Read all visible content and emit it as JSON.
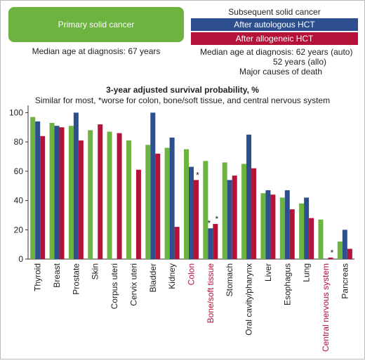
{
  "header": {
    "primary": "Primary solid cancer",
    "primary_age": "Median age at diagnosis: 67 years",
    "subsequent": "Subsequent solid cancer",
    "auto": "After autologous HCT",
    "allo": "After allogeneic HCT",
    "age_auto": "Median age at diagnosis: 62 years (auto)",
    "age_allo": "52 years (allo)",
    "causes": "Major causes of death"
  },
  "chart_data": {
    "type": "bar",
    "title": "3-year adjusted survival probability, %",
    "subtitle": "Similar for most, *worse for colon, bone/soft tissue, and central nervous system",
    "categories": [
      "Thyroid",
      "Breast",
      "Prostate",
      "Skin",
      "Corpus uteri",
      "Cervix uteri",
      "Bladder",
      "Kidney",
      "Colon",
      "Bone/soft tissue",
      "Stomach",
      "Oral cavity/pharynx",
      "Liver",
      "Esophagus",
      "Lung",
      "Central nervous system",
      "Pancreas"
    ],
    "category_colors": [
      "#222222",
      "#222222",
      "#222222",
      "#222222",
      "#222222",
      "#222222",
      "#222222",
      "#222222",
      "#b5123a",
      "#b5123a",
      "#222222",
      "#222222",
      "#222222",
      "#222222",
      "#222222",
      "#b5123a",
      "#222222"
    ],
    "series": [
      {
        "color": "#6db33f",
        "values": [
          97,
          93,
          91,
          88,
          87,
          81,
          78,
          76,
          75,
          67,
          66,
          65,
          45,
          42,
          38,
          27,
          12
        ]
      },
      {
        "color": "#2d4f8e",
        "values": [
          94,
          91,
          100,
          null,
          null,
          null,
          100,
          83,
          63,
          21,
          54,
          85,
          47,
          47,
          42,
          null,
          20
        ],
        "notes": [
          null,
          null,
          null,
          null,
          null,
          null,
          null,
          null,
          null,
          "*",
          null,
          null,
          null,
          null,
          null,
          null,
          null
        ]
      },
      {
        "color": "#b5123a",
        "values": [
          84,
          90,
          81,
          92,
          86,
          61,
          72,
          22,
          54,
          24,
          57,
          62,
          44,
          34,
          28,
          1,
          7
        ],
        "notes": [
          null,
          null,
          null,
          null,
          null,
          null,
          null,
          null,
          "*",
          "*",
          null,
          null,
          null,
          null,
          null,
          "*",
          null
        ]
      }
    ],
    "ylim": [
      0,
      105
    ],
    "yticks": [
      0,
      20,
      40,
      60,
      80,
      100
    ]
  }
}
